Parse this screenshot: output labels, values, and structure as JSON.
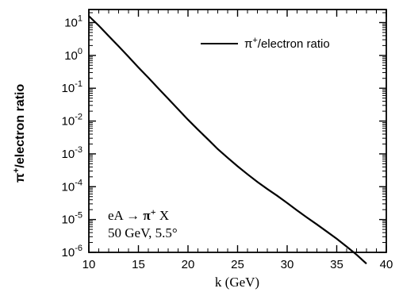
{
  "chart_data": {
    "type": "line",
    "title": "",
    "xlabel": "k (GeV)",
    "ylabel": {
      "prefix": "π",
      "sup": "+",
      "rest": "/electron ratio"
    },
    "xlim": [
      10,
      40
    ],
    "ylim": [
      1e-06,
      25
    ],
    "yscale": "log",
    "grid": false,
    "x_ticks": [
      10,
      15,
      20,
      25,
      30,
      35,
      40
    ],
    "x_tick_labels": [
      "10",
      "15",
      "20",
      "25",
      "30",
      "35",
      "40"
    ],
    "y_ticks": [
      {
        "value": 10,
        "base": "10",
        "exp": "1"
      },
      {
        "value": 1,
        "base": "10",
        "exp": "0"
      },
      {
        "value": 0.1,
        "base": "10",
        "exp": "-1"
      },
      {
        "value": 0.01,
        "base": "10",
        "exp": "-2"
      },
      {
        "value": 0.001,
        "base": "10",
        "exp": "-3"
      },
      {
        "value": 0.0001,
        "base": "10",
        "exp": "-4"
      },
      {
        "value": 1e-05,
        "base": "10",
        "exp": "-5"
      },
      {
        "value": 1e-06,
        "base": "10",
        "exp": "-6"
      }
    ],
    "legend": {
      "position": "top-right",
      "prefix": "π",
      "sup": "+",
      "rest": "/electron ratio"
    },
    "series": [
      {
        "name": "π+/electron ratio",
        "x": [
          10,
          11,
          12,
          13,
          14,
          15,
          16,
          17,
          18,
          19,
          20,
          21,
          22,
          23,
          24,
          25,
          26,
          27,
          28,
          29,
          30,
          31,
          32,
          33,
          34,
          35,
          36,
          37,
          38
        ],
        "y": [
          15.8,
          8.1,
          3.9,
          1.9,
          0.91,
          0.43,
          0.21,
          0.1,
          0.048,
          0.023,
          0.011,
          0.0055,
          0.0028,
          0.0014,
          0.00076,
          0.00042,
          0.00024,
          0.00014,
          8.5e-05,
          5.3e-05,
          3.2e-05,
          1.9e-05,
          1.15e-05,
          7.1e-06,
          4.3e-06,
          2.6e-06,
          1.5e-06,
          8.5e-07,
          4.5e-07
        ]
      }
    ],
    "annotation": {
      "line1": {
        "pre": "eA → ",
        "bold": "π",
        "sup": "+",
        "post": " X"
      },
      "line2": "50 GeV, 5.5°",
      "position": "bottom-left"
    }
  }
}
